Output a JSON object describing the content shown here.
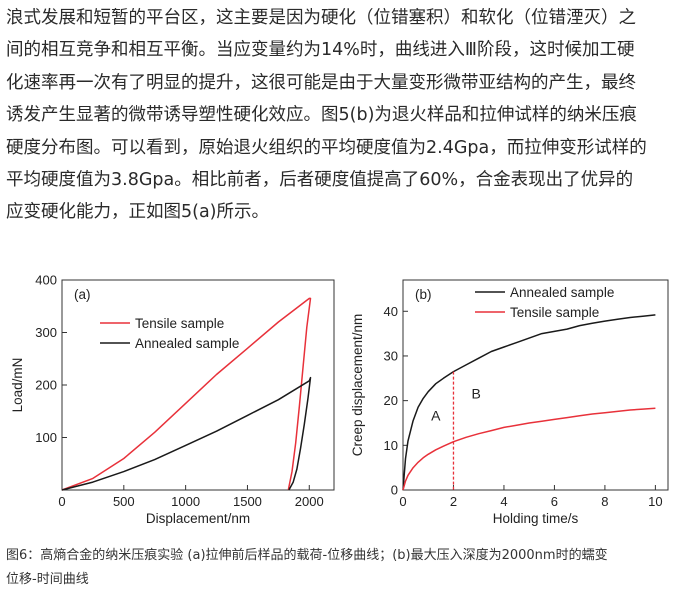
{
  "paragraph": {
    "lines": [
      "浪式发展和短暂的平台区，这主要是因为硬化（位错塞积）和软化（位错湮灭）之",
      "间的相互竞争和相互平衡。当应变量约为14%时，曲线进入Ⅲ阶段，这时候加工硬",
      "化速率再一次有了明显的提升，这很可能是由于大量变形微带亚结构的产生，最终",
      "诱发产生显著的微带诱导塑性硬化效应。图5(b)为退火样品和拉伸试样的纳米压痕",
      "硬度分布图。可以看到，原始退火组织的平均硬度值为2.4Gpa，而拉伸变形试样的",
      "平均硬度值为3.8Gpa。相比前者，后者硬度值提高了60%，合金表现出了优异的",
      "应变硬化能力，正如图5(a)所示。"
    ]
  },
  "caption": {
    "line1": "图6：高熵合金的纳米压痕实验 (a)拉伸前后样品的载荷-位移曲线；(b)最大压入深度为2000nm时的蠕变",
    "line2": "位移-时间曲线"
  },
  "colors": {
    "tensile": "#e8313a",
    "annealed": "#1a1a1a",
    "axis": "#333333"
  },
  "chart_data": [
    {
      "type": "line",
      "panel_label": "(a)",
      "xlabel": "Displacement/nm",
      "ylabel": "Load/mN",
      "xlim": [
        0,
        2200
      ],
      "ylim": [
        0,
        400
      ],
      "xticks": [
        0,
        500,
        1000,
        1500,
        2000
      ],
      "yticks": [
        100,
        200,
        300,
        400
      ],
      "legend_position": "top-left",
      "grid": false,
      "series": [
        {
          "name": "Tensile sample",
          "color": "#e8313a",
          "x": [
            0,
            250,
            500,
            750,
            1000,
            1250,
            1500,
            1750,
            2000,
            2010,
            1980,
            1950,
            1920,
            1890,
            1860,
            1830
          ],
          "y": [
            0,
            22,
            60,
            110,
            165,
            220,
            270,
            320,
            365,
            365,
            310,
            235,
            160,
            90,
            35,
            0
          ]
        },
        {
          "name": "Annealed sample",
          "color": "#1a1a1a",
          "x": [
            0,
            250,
            500,
            750,
            1000,
            1250,
            1500,
            1750,
            2000,
            2010,
            1990,
            1960,
            1930,
            1900,
            1870,
            1835
          ],
          "y": [
            0,
            15,
            35,
            58,
            85,
            112,
            142,
            172,
            208,
            214,
            175,
            125,
            80,
            40,
            15,
            0
          ]
        }
      ]
    },
    {
      "type": "line",
      "panel_label": "(b)",
      "xlabel": "Holding time/s",
      "ylabel": "Creep displacement/nm",
      "xlim": [
        0,
        10.5
      ],
      "ylim": [
        0,
        47
      ],
      "xticks": [
        0,
        2,
        4,
        6,
        8,
        10
      ],
      "yticks": [
        0,
        10,
        20,
        30,
        40
      ],
      "legend_position": "top",
      "grid": false,
      "region_labels": [
        "A",
        "B"
      ],
      "divider_x": 2,
      "series": [
        {
          "name": "Annealed sample",
          "color": "#1a1a1a",
          "x": [
            0,
            0.1,
            0.2,
            0.4,
            0.6,
            0.8,
            1.0,
            1.3,
            1.6,
            2.0,
            2.5,
            3.0,
            3.5,
            4.0,
            4.5,
            5.0,
            5.5,
            6.0,
            6.5,
            7.0,
            7.5,
            8.0,
            8.5,
            9.0,
            9.5,
            10.0
          ],
          "y": [
            0,
            7,
            11,
            15.5,
            18.5,
            20.5,
            22,
            23.8,
            25,
            26.5,
            28,
            29.5,
            31,
            32,
            33,
            34,
            35,
            35.5,
            36,
            36.8,
            37.3,
            37.8,
            38.2,
            38.6,
            38.9,
            39.2
          ]
        },
        {
          "name": "Tensile sample",
          "color": "#e8313a",
          "x": [
            0,
            0.1,
            0.2,
            0.4,
            0.6,
            0.8,
            1.0,
            1.3,
            1.6,
            2.0,
            2.5,
            3.0,
            3.5,
            4.0,
            4.5,
            5.0,
            5.5,
            6.0,
            6.5,
            7.0,
            7.5,
            8.0,
            8.5,
            9.0,
            9.5,
            10.0
          ],
          "y": [
            0,
            2,
            3.3,
            5,
            6.2,
            7.2,
            8,
            9,
            9.8,
            10.8,
            11.8,
            12.6,
            13.3,
            14,
            14.5,
            15,
            15.4,
            15.8,
            16.2,
            16.6,
            17,
            17.3,
            17.6,
            17.9,
            18.1,
            18.3
          ]
        }
      ]
    }
  ]
}
